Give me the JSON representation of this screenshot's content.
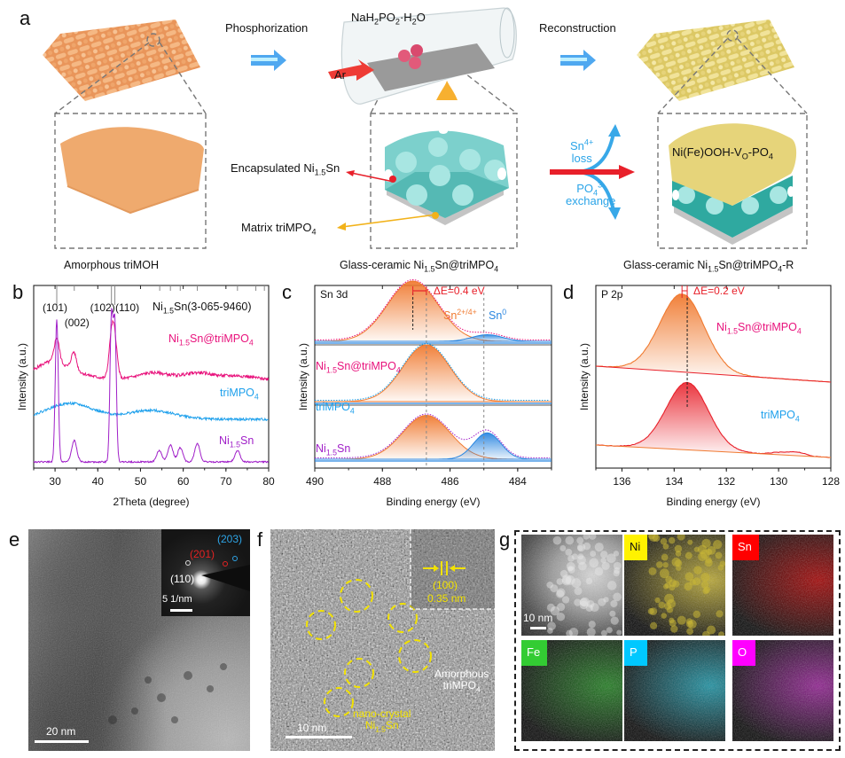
{
  "figure": {
    "panel_labels": [
      "a",
      "b",
      "c",
      "d",
      "e",
      "f",
      "g"
    ],
    "panel_a": {
      "step1_label": "Phosphorization",
      "step2_label": "Reconstruction",
      "reagent_html": "NaH<sub>2</sub>PO<sub>2</sub>·H<sub>2</sub>O",
      "gas_label": "Ar",
      "left_caption": "Amorphous triMOH",
      "middle_caption_html": "Glass-ceramic Ni<sub>1.5</sub>Sn@triMPO<sub>4</sub>",
      "right_caption_html": "Glass-ceramic Ni<sub>1.5</sub>Sn@triMPO<sub>4</sub>-R",
      "encapsulated_html": "Encapsulated Ni<sub>1.5</sub>Sn",
      "matrix_html": "Matrix triMPO<sub>4</sub>",
      "sn_loss_html": "Sn<sup>4+</sup><br>loss",
      "po4_exchange_html": "PO<sub>4</sub><sup>3-</sup><br>exchange",
      "surface_layer_html": "Ni(Fe)OOH-V<sub>O</sub>-PO<sub>4</sub>",
      "colors": {
        "amorphous": "#EFA86A",
        "glass": "#7FD3CF",
        "reconstructed": "#E8D77C",
        "arrow_blue": "#38A8E8",
        "arrow_red": "#E8202A",
        "arrow_yellow": "#F2B21A"
      }
    },
    "panel_e": {
      "scale_bar": "20 nm",
      "saed_scale": "5 1/nm",
      "saed_labels": [
        {
          "text": "(203)",
          "color": "#2EA4E6"
        },
        {
          "text": "(201)",
          "color": "#E42222"
        },
        {
          "text": "(110)",
          "color": "#FFFFFF"
        }
      ]
    },
    "panel_f": {
      "scale_bar": "10 nm",
      "plane": "(100)",
      "spacing": "0.35 nm",
      "amorphous_html": "Amorphous<br>triMPO<sub>4</sub>",
      "nanocrystal_html": "nano-crystal<br>Ni<sub>1.5</sub>Sn"
    },
    "panel_g": {
      "scale_bar": "10 nm",
      "maps": [
        {
          "element": "HAADF",
          "label_bg": "",
          "tint": "#bbbbbb"
        },
        {
          "element": "Ni",
          "label_bg": "#FFF200",
          "label_color": "#111",
          "tint": "#B8A630"
        },
        {
          "element": "Sn",
          "label_bg": "#FF0000",
          "label_color": "#fff",
          "tint": "#A00000"
        },
        {
          "element": "Fe",
          "label_bg": "#33CC33",
          "label_color": "#fff",
          "tint": "#1E7A1E"
        },
        {
          "element": "P",
          "label_bg": "#00C8FF",
          "label_color": "#fff",
          "tint": "#1A8FA0"
        },
        {
          "element": "O",
          "label_bg": "#FF00FF",
          "label_color": "#fff",
          "tint": "#8E1E8E"
        }
      ]
    }
  },
  "chart_data": [
    {
      "id": "b",
      "type": "line",
      "title": "",
      "xlabel": "2Theta (degree)",
      "ylabel": "Intensity (a.u.)",
      "xlim": [
        25,
        80
      ],
      "xticks": [
        30,
        40,
        50,
        60,
        70,
        80
      ],
      "reference": {
        "label_html": "Ni<sub>1.5</sub>Sn(3-065-9460)",
        "lines": [
          30.4,
          34.5,
          43.2,
          44.0,
          54.5,
          57.0,
          59.3,
          63.3,
          72.7,
          77.0,
          79.0
        ]
      },
      "peak_labels": [
        {
          "text": "(101)",
          "x": 30.4
        },
        {
          "text": "(002)",
          "x": 34.5
        },
        {
          "text": "(102)",
          "x": 43.2
        },
        {
          "text": "(110)",
          "x": 44.0
        }
      ],
      "series": [
        {
          "name_html": "Ni<sub>1.5</sub>Sn@triMPO<sub>4</sub>",
          "color": "#E8127C",
          "peaks": [
            [
              28.5,
              0.25
            ],
            [
              30.4,
              0.55
            ],
            [
              34.4,
              0.4
            ],
            [
              43.2,
              0.85
            ],
            [
              44.0,
              0.75
            ],
            [
              53,
              0.15
            ],
            [
              63.5,
              0.15
            ],
            [
              72.8,
              0.08
            ]
          ]
        },
        {
          "name_html": "triMPO<sub>4</sub>",
          "color": "#1EA0EC",
          "peaks": [
            [
              33.5,
              0.45
            ],
            [
              52.5,
              0.25
            ]
          ]
        },
        {
          "name_html": "Ni<sub>1.5</sub>Sn",
          "color": "#A01FC8",
          "peaks": [
            [
              30.4,
              1.0
            ],
            [
              34.5,
              0.15
            ],
            [
              43.2,
              1.0
            ],
            [
              44.0,
              0.95
            ],
            [
              54.4,
              0.08
            ],
            [
              57.0,
              0.12
            ],
            [
              59.3,
              0.1
            ],
            [
              63.3,
              0.13
            ],
            [
              72.7,
              0.08
            ]
          ]
        }
      ]
    },
    {
      "id": "c",
      "type": "area",
      "title": "Sn 3d",
      "xlabel": "Binding energy (eV)",
      "ylabel": "Intensity (a.u.)",
      "xlim": [
        490,
        483
      ],
      "xticks": [
        490,
        488,
        486,
        484
      ],
      "annotation": "ΔE=0.4 eV",
      "component_labels": [
        {
          "text_html": "Sn<sup>2+/4+</sup>",
          "color": "#F07A30"
        },
        {
          "text_html": "Sn<sup>0</sup>",
          "color": "#2A86E0"
        }
      ],
      "reference_lines": [
        486.7,
        485.0
      ],
      "series": [
        {
          "name_html": "Ni<sub>1.5</sub>Sn@triMPO<sub>4</sub>",
          "color": "#E8127C",
          "components": [
            {
              "center": 487.1,
              "height": 1.0,
              "width": 0.75,
              "fill": "#F07A30"
            },
            {
              "center": 484.9,
              "height": 0.11,
              "width": 0.45,
              "fill": "#2A86E0"
            }
          ]
        },
        {
          "name_html": "triMPO<sub>4</sub>",
          "color": "#1EA0EC",
          "components": [
            {
              "center": 486.7,
              "height": 1.0,
              "width": 0.7,
              "fill": "#F07A30"
            }
          ]
        },
        {
          "name_html": "Ni<sub>1.5</sub>Sn",
          "color": "#A01FC8",
          "components": [
            {
              "center": 486.7,
              "height": 0.75,
              "width": 0.7,
              "fill": "#F07A30"
            },
            {
              "center": 484.9,
              "height": 0.45,
              "width": 0.4,
              "fill": "#2A86E0"
            }
          ]
        }
      ]
    },
    {
      "id": "d",
      "type": "area",
      "title": "P 2p",
      "xlabel": "Binding energy (eV)",
      "ylabel": "Intensity (a.u.)",
      "xlim": [
        137,
        128
      ],
      "xticks": [
        136,
        134,
        132,
        130,
        128
      ],
      "annotation": "ΔE=0.2 eV",
      "reference_lines": [
        133.5
      ],
      "series": [
        {
          "name_html": "Ni<sub>1.5</sub>Sn@triMPO<sub>4</sub>",
          "label_color": "#E8127C",
          "color": "#F07A30",
          "center": 133.7,
          "height": 1.0,
          "width": 0.85
        },
        {
          "name_html": "triMPO<sub>4</sub>",
          "label_color": "#1EA0EC",
          "color": "#E8202A",
          "center": 133.5,
          "height": 0.95,
          "width": 0.8
        }
      ]
    }
  ]
}
